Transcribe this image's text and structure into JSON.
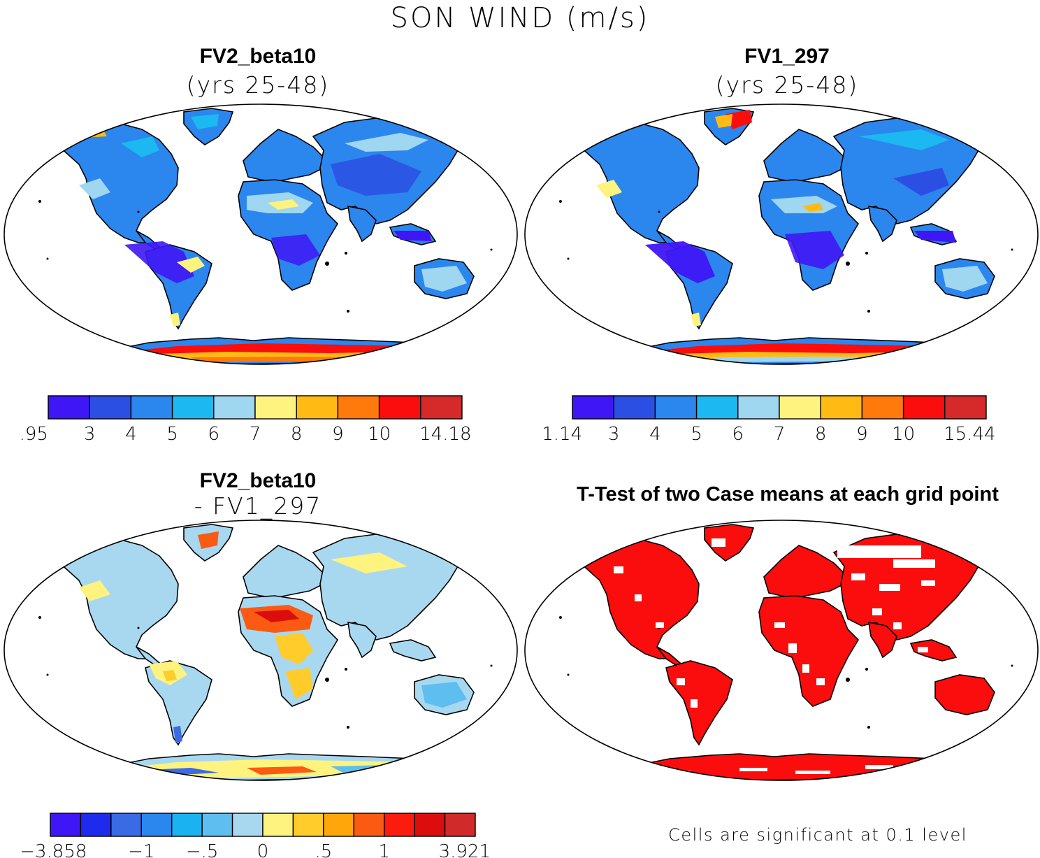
{
  "title": "SON WIND (m/s)",
  "panels": [
    {
      "title": "FV2_beta10",
      "subtitle": "(yrs 25-48)",
      "colorbar": {
        "colors": [
          "#3f16f5",
          "#2c4fe3",
          "#2b86ee",
          "#1cb8f2",
          "#9fd6f0",
          "#fff37f",
          "#ffbb14",
          "#ff7a0a",
          "#fb0d0d",
          "#d62a2a"
        ],
        "labels": [
          ".95",
          "3",
          "4",
          "5",
          "6",
          "7",
          "8",
          "9",
          "10",
          "14.18"
        ]
      }
    },
    {
      "title": "FV1_297",
      "subtitle": "(yrs 25-48)",
      "colorbar": {
        "colors": [
          "#3f16f5",
          "#2c4fe3",
          "#2b86ee",
          "#1cb8f2",
          "#9fd6f0",
          "#fff37f",
          "#ffbb14",
          "#ff7a0a",
          "#fb0d0d",
          "#d62a2a"
        ],
        "labels": [
          "1.14",
          "3",
          "4",
          "5",
          "6",
          "7",
          "8",
          "9",
          "10",
          "15.44"
        ]
      }
    },
    {
      "title": "FV2_beta10",
      "subtitle": "- FV1_297",
      "colorbar": {
        "colors": [
          "#3f16f5",
          "#1f2bec",
          "#3a6ae4",
          "#2b86ee",
          "#1ab2f0",
          "#5ebef0",
          "#a8d8f0",
          "#fff37f",
          "#ffcc2b",
          "#ffa70a",
          "#fb5a12",
          "#fb1c0d",
          "#db0d0d",
          "#d12a2a"
        ],
        "labels": [
          "-3.858",
          "-1",
          "-.5",
          "0",
          ".5",
          "1",
          "3.921"
        ]
      }
    },
    {
      "title": "T-Test of two Case means at each grid point",
      "caption": "Cells are significant at 0.1 level"
    }
  ]
}
